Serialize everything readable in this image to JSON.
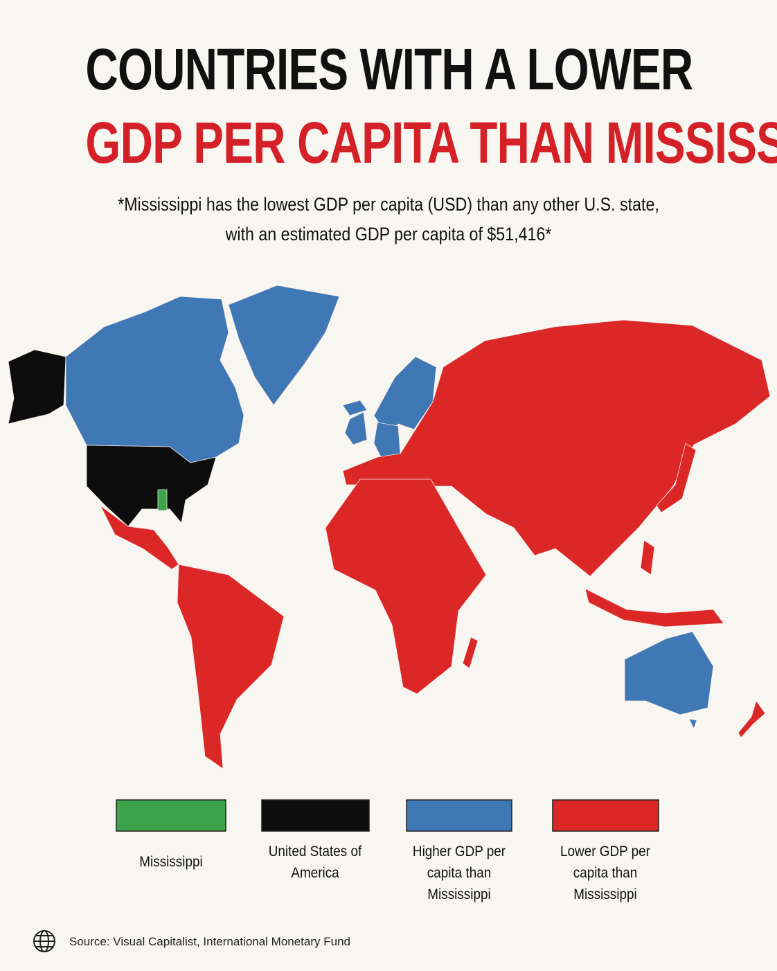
{
  "header": {
    "title_line1": "COUNTRIES WITH A LOWER",
    "title_line2": "GDP PER CAPITA THAN MISSISSIPPI",
    "title_line1_color": "#111111",
    "title_line2_color": "#d42027",
    "subtitle_line1": "*Mississippi has the lowest GDP per capita (USD) than any other U.S. state,",
    "subtitle_line2": "with an estimated GDP per capita of $51,416*"
  },
  "legend": {
    "items": [
      {
        "label": "Mississippi",
        "color": "#3da34a"
      },
      {
        "label": "United States of America",
        "color": "#0d0d0d"
      },
      {
        "label": "Higher GDP per capita than Mississippi",
        "color": "#3f78b5"
      },
      {
        "label": "Lower GDP per capita than Mississippi",
        "color": "#dc2727"
      }
    ]
  },
  "footer": {
    "source": "Source: Visual Capitalist, International Monetary Fund"
  }
}
